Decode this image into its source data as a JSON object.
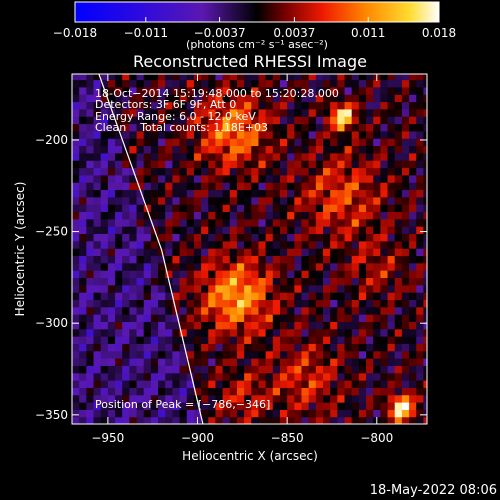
{
  "chart_data": {
    "type": "heatmap",
    "title": "Reconstructed RHESSI Image",
    "xlabel": "Heliocentric X (arcsec)",
    "ylabel": "Heliocentric Y (arcsec)",
    "xlim": [
      -970,
      -772
    ],
    "ylim": [
      -355,
      -164
    ],
    "xticks": [
      -950,
      -900,
      -850,
      -800
    ],
    "xtick_labels": [
      "-950",
      "-900",
      "-850",
      "-800"
    ],
    "yticks": [
      -200,
      -250,
      -300,
      -350
    ],
    "ytick_labels": [
      "-200",
      "-250",
      "-300",
      "-350"
    ],
    "colorbar": {
      "ticks": [
        -0.018,
        -0.011,
        -0.0037,
        0.0037,
        0.011,
        0.018
      ],
      "tick_labels": [
        "-0.018",
        "-0.011",
        "-0.0037",
        "0.0037",
        "0.011",
        "0.018"
      ],
      "unit_label": "(photons cm⁻² s⁻¹ asec⁻²)",
      "min": -0.018,
      "max": 0.018
    },
    "grid_step_arcsec": 4,
    "sources": [
      {
        "x": -786,
        "y": -346,
        "amp": 0.018,
        "sigma": 5
      },
      {
        "x": -819,
        "y": -187,
        "amp": 0.016,
        "sigma": 5
      },
      {
        "x": -878,
        "y": -285,
        "amp": 0.012,
        "sigma": 14
      },
      {
        "x": -880,
        "y": -195,
        "amp": 0.01,
        "sigma": 14
      },
      {
        "x": -820,
        "y": -230,
        "amp": 0.007,
        "sigma": 16
      },
      {
        "x": -840,
        "y": -330,
        "amp": 0.006,
        "sigma": 14
      },
      {
        "x": -875,
        "y": -340,
        "amp": 0.005,
        "sigma": 10
      },
      {
        "x": -800,
        "y": -270,
        "amp": 0.004,
        "sigma": 12
      }
    ],
    "limb": [
      [
        -955,
        -164
      ],
      [
        -920,
        -260
      ],
      [
        -897,
        -355
      ]
    ],
    "annotations": [
      "18-Oct-2014 15:19:48.000 to 15:20:28.000",
      "Detectors: 3F 6F 9F, Att 0",
      "Energy Range: 6.0 - 12.0 keV",
      "Clean    Total counts: 1.18E+03",
      "Position of Peak = [-786,-346]"
    ],
    "legend": "none"
  },
  "footer_date": "18-May-2022 08:06"
}
